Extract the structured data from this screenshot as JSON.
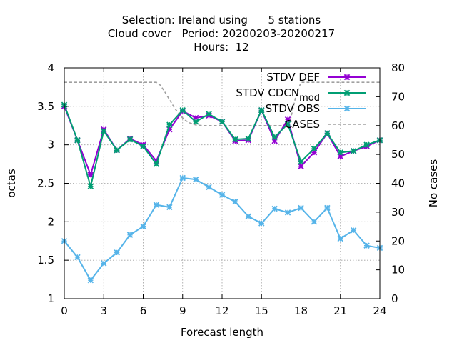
{
  "chart_data": {
    "type": "line",
    "title_lines": [
      "Selection: Ireland using      5 stations",
      "Cloud cover   Period: 20200203-20200217",
      "Hours:  12"
    ],
    "xlabel": "Forecast length",
    "ylabel": "octas",
    "y2label": "No cases",
    "xlim": [
      0,
      24
    ],
    "ylim": [
      1,
      4
    ],
    "y2lim": [
      0,
      80
    ],
    "xticks": [
      0,
      3,
      6,
      9,
      12,
      15,
      18,
      21,
      24
    ],
    "yticks": [
      "1",
      "1.5",
      "2",
      "2.5",
      "3",
      "3.5",
      "4"
    ],
    "y2ticks": [
      0,
      10,
      20,
      30,
      40,
      50,
      60,
      70,
      80
    ],
    "grid": true,
    "legend_position": "top-right",
    "x": [
      0,
      1,
      2,
      3,
      4,
      5,
      6,
      7,
      8,
      9,
      10,
      11,
      12,
      13,
      14,
      15,
      16,
      17,
      18,
      19,
      20,
      21,
      22,
      23,
      24
    ],
    "series": [
      {
        "name": "STDV DEF",
        "color": "#9400d3",
        "marker": "x",
        "axis": "y",
        "values": [
          3.5,
          3.06,
          2.61,
          3.2,
          2.93,
          3.08,
          3.0,
          2.79,
          3.2,
          3.44,
          3.35,
          3.38,
          3.3,
          3.05,
          3.06,
          3.45,
          3.05,
          3.33,
          2.72,
          2.9,
          3.15,
          2.85,
          2.92,
          2.98,
          3.06
        ]
      },
      {
        "name": "STDV CDCN_mod",
        "label_main": "STDV CDCN",
        "label_sub": "mod",
        "color": "#009e73",
        "marker": "x",
        "axis": "y",
        "values": [
          3.52,
          3.06,
          2.46,
          3.18,
          2.93,
          3.07,
          2.98,
          2.75,
          3.26,
          3.45,
          3.3,
          3.4,
          3.3,
          3.07,
          3.08,
          3.45,
          3.1,
          3.27,
          2.78,
          2.95,
          3.15,
          2.9,
          2.92,
          3.0,
          3.06
        ]
      },
      {
        "name": "STDV OBS",
        "color": "#56b4e9",
        "marker": "x",
        "axis": "y",
        "values": [
          1.75,
          1.54,
          1.24,
          1.46,
          1.6,
          1.83,
          1.94,
          2.22,
          2.19,
          2.57,
          2.55,
          2.45,
          2.35,
          2.26,
          2.07,
          1.98,
          2.17,
          2.12,
          2.18,
          2.0,
          2.18,
          1.78,
          1.89,
          1.69,
          1.66
        ]
      },
      {
        "name": "CASES",
        "color": "#a0a0a0",
        "dashed": true,
        "axis": "y2",
        "x": [
          0,
          7,
          7.3,
          7.6,
          8,
          8.4,
          8.8,
          9.2,
          9.6,
          10,
          10.5,
          11,
          17,
          17.2,
          17.4,
          17.6,
          18,
          24
        ],
        "values": [
          75,
          75,
          74,
          72,
          69,
          66,
          63.5,
          61.8,
          60.8,
          60.2,
          60,
          60,
          60,
          62,
          66,
          70,
          75,
          75
        ]
      }
    ]
  }
}
